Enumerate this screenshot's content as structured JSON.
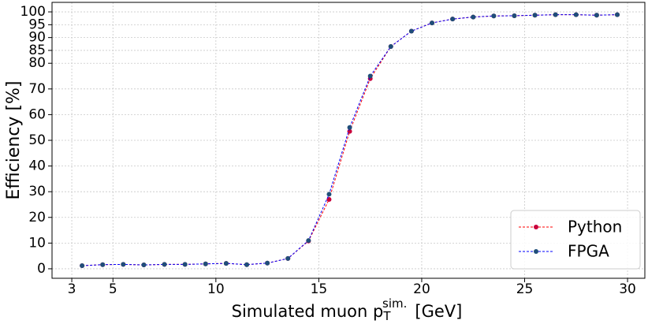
{
  "chart_data": {
    "type": "line",
    "xlabel": {
      "main": "Simulated muon p",
      "subscript": "T",
      "superscript": "sim.",
      "unit": "[GeV]"
    },
    "ylabel": "Efficiency [%]",
    "x": [
      3.5,
      4.5,
      5.5,
      6.5,
      7.5,
      8.5,
      9.5,
      10.5,
      11.5,
      12.5,
      13.5,
      14.5,
      15.5,
      16.5,
      17.5,
      18.5,
      19.5,
      20.5,
      21.5,
      22.5,
      23.5,
      24.5,
      25.5,
      26.5,
      27.5,
      28.5,
      29.5
    ],
    "series": [
      {
        "name": "Python",
        "color": "#ff0000",
        "marker_color": "#c8003c",
        "values": [
          1.2,
          1.6,
          1.7,
          1.5,
          1.7,
          1.7,
          1.9,
          2.1,
          1.6,
          2.2,
          4,
          10.8,
          27,
          53.5,
          74,
          86.5,
          92.5,
          95.7,
          97.2,
          98,
          98.4,
          98.5,
          98.7,
          98.9,
          98.9,
          98.7,
          98.9
        ]
      },
      {
        "name": "FPGA",
        "color": "#0000ff",
        "marker_color": "#1f4e79",
        "values": [
          1.2,
          1.6,
          1.7,
          1.5,
          1.7,
          1.7,
          1.9,
          2.1,
          1.6,
          2.2,
          4,
          11,
          29,
          55,
          75,
          86.5,
          92.5,
          95.7,
          97.2,
          98,
          98.4,
          98.5,
          98.7,
          98.9,
          98.9,
          98.7,
          98.9
        ]
      }
    ],
    "xlim": [
      2.04,
      30.84
    ],
    "ylim": [
      -3.7,
      103.7
    ],
    "xticks": [
      3,
      5,
      10,
      15,
      20,
      25,
      30
    ],
    "yticks": [
      0,
      10,
      20,
      30,
      40,
      50,
      60,
      70,
      80,
      85,
      90,
      95,
      100
    ],
    "grid": true,
    "legend": "lower right"
  }
}
